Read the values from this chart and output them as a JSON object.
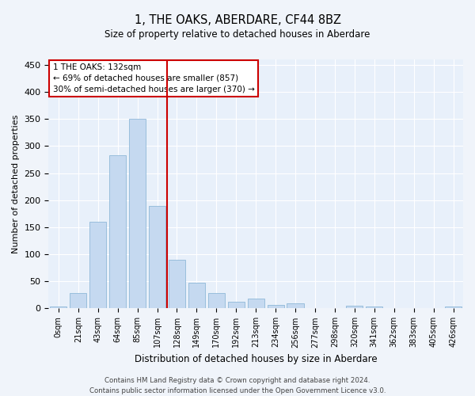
{
  "title": "1, THE OAKS, ABERDARE, CF44 8BZ",
  "subtitle": "Size of property relative to detached houses in Aberdare",
  "xlabel": "Distribution of detached houses by size in Aberdare",
  "ylabel": "Number of detached properties",
  "bar_color": "#c5d9f0",
  "bar_edge_color": "#8fb8d8",
  "bg_color": "#e8f0fa",
  "grid_color": "#ffffff",
  "fig_bg_color": "#f0f4fa",
  "categories": [
    "0sqm",
    "21sqm",
    "43sqm",
    "64sqm",
    "85sqm",
    "107sqm",
    "128sqm",
    "149sqm",
    "170sqm",
    "192sqm",
    "213sqm",
    "234sqm",
    "256sqm",
    "277sqm",
    "298sqm",
    "320sqm",
    "341sqm",
    "362sqm",
    "383sqm",
    "405sqm",
    "426sqm"
  ],
  "values": [
    3,
    28,
    160,
    283,
    350,
    190,
    90,
    48,
    29,
    13,
    18,
    6,
    10,
    1,
    1,
    5,
    4,
    1,
    1,
    0,
    4
  ],
  "property_line_x": 5.5,
  "annotation_title": "1 THE OAKS: 132sqm",
  "annotation_line1": "← 69% of detached houses are smaller (857)",
  "annotation_line2": "30% of semi-detached houses are larger (370) →",
  "annotation_box_color": "#ffffff",
  "annotation_box_edge": "#cc0000",
  "property_line_color": "#cc0000",
  "footer1": "Contains HM Land Registry data © Crown copyright and database right 2024.",
  "footer2": "Contains public sector information licensed under the Open Government Licence v3.0.",
  "ylim": [
    0,
    460
  ],
  "yticks": [
    0,
    50,
    100,
    150,
    200,
    250,
    300,
    350,
    400,
    450
  ]
}
